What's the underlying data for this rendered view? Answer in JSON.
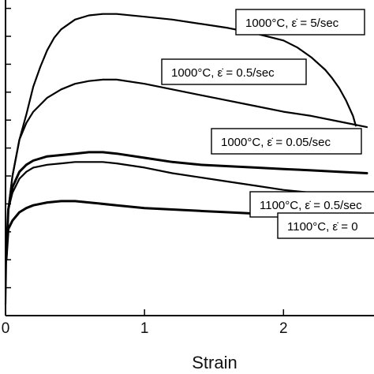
{
  "chart_data": {
    "type": "line",
    "xlabel": "Strain",
    "ylabel": "",
    "xlim": [
      0,
      2.6
    ],
    "ylim": [
      0,
      11.3
    ],
    "x_ticks": [
      0,
      1,
      2
    ],
    "x_tick_labels": [
      "0",
      "1",
      "2"
    ],
    "y_ticks": [
      1,
      2,
      3,
      4,
      5,
      6,
      7,
      8,
      9,
      10,
      11
    ],
    "grid": false,
    "legend": "none",
    "line_color": "#000000",
    "series": [
      {
        "label_text": "1000°C, ε̇ = 5/sec",
        "stroke": 2.2,
        "x": [
          0.005,
          0.02,
          0.05,
          0.1,
          0.15,
          0.2,
          0.25,
          0.3,
          0.35,
          0.4,
          0.5,
          0.6,
          0.7,
          0.8,
          1.0,
          1.2,
          1.4,
          1.6,
          1.8,
          2.0,
          2.1,
          2.2,
          2.3,
          2.35,
          2.4,
          2.45,
          2.5,
          2.52
        ],
        "y": [
          2.0,
          3.8,
          5.0,
          6.3,
          7.2,
          8.2,
          8.9,
          9.5,
          9.95,
          10.25,
          10.6,
          10.75,
          10.8,
          10.8,
          10.7,
          10.6,
          10.45,
          10.3,
          10.1,
          9.85,
          9.6,
          9.25,
          8.8,
          8.5,
          8.15,
          7.7,
          7.15,
          6.8
        ]
      },
      {
        "label_text": "1000°C, ε̇ = 0.5/sec",
        "stroke": 2.2,
        "x": [
          0.005,
          0.02,
          0.05,
          0.1,
          0.15,
          0.2,
          0.3,
          0.4,
          0.5,
          0.6,
          0.7,
          0.8,
          1.0,
          1.2,
          1.4,
          1.6,
          1.8,
          2.0,
          2.2,
          2.4,
          2.6
        ],
        "y": [
          2.0,
          3.8,
          5.0,
          6.3,
          6.9,
          7.3,
          7.8,
          8.1,
          8.3,
          8.4,
          8.45,
          8.45,
          8.3,
          8.1,
          7.9,
          7.7,
          7.5,
          7.3,
          7.15,
          6.95,
          6.75
        ]
      },
      {
        "label_text": "1000°C, ε̇ = 0.05/sec",
        "stroke": 3.0,
        "x": [
          0.005,
          0.02,
          0.05,
          0.1,
          0.15,
          0.2,
          0.3,
          0.4,
          0.5,
          0.6,
          0.7,
          0.8,
          1.0,
          1.2,
          1.4,
          1.6,
          1.8,
          2.0,
          2.2,
          2.4,
          2.6
        ],
        "y": [
          2.0,
          3.8,
          4.6,
          5.15,
          5.4,
          5.55,
          5.7,
          5.75,
          5.8,
          5.85,
          5.85,
          5.8,
          5.65,
          5.5,
          5.4,
          5.35,
          5.3,
          5.25,
          5.2,
          5.15,
          5.1
        ]
      },
      {
        "label_text": "1100°C, ε̇ = 0.5/sec",
        "stroke": 2.2,
        "x": [
          0.005,
          0.02,
          0.05,
          0.1,
          0.15,
          0.2,
          0.3,
          0.4,
          0.5,
          0.6,
          0.7,
          0.8,
          1.0,
          1.2,
          1.4,
          1.6,
          1.8,
          2.0,
          2.2,
          2.4,
          2.6
        ],
        "y": [
          2.0,
          3.8,
          4.4,
          4.9,
          5.15,
          5.3,
          5.4,
          5.45,
          5.5,
          5.5,
          5.5,
          5.45,
          5.3,
          5.1,
          4.95,
          4.8,
          4.65,
          4.5,
          4.4,
          4.3,
          4.25
        ]
      },
      {
        "label_text": "1100°C, ε̇ = 0",
        "stroke": 3.0,
        "x": [
          0.005,
          0.02,
          0.05,
          0.1,
          0.15,
          0.2,
          0.3,
          0.4,
          0.5,
          0.6,
          0.8,
          1.0,
          1.2,
          1.4,
          1.6,
          1.8,
          2.0,
          2.2,
          2.4,
          2.6
        ],
        "y": [
          2.0,
          3.1,
          3.4,
          3.7,
          3.85,
          3.95,
          4.05,
          4.1,
          4.1,
          4.05,
          3.95,
          3.85,
          3.8,
          3.75,
          3.7,
          3.65,
          3.6,
          3.55,
          3.5,
          3.45
        ]
      }
    ]
  }
}
